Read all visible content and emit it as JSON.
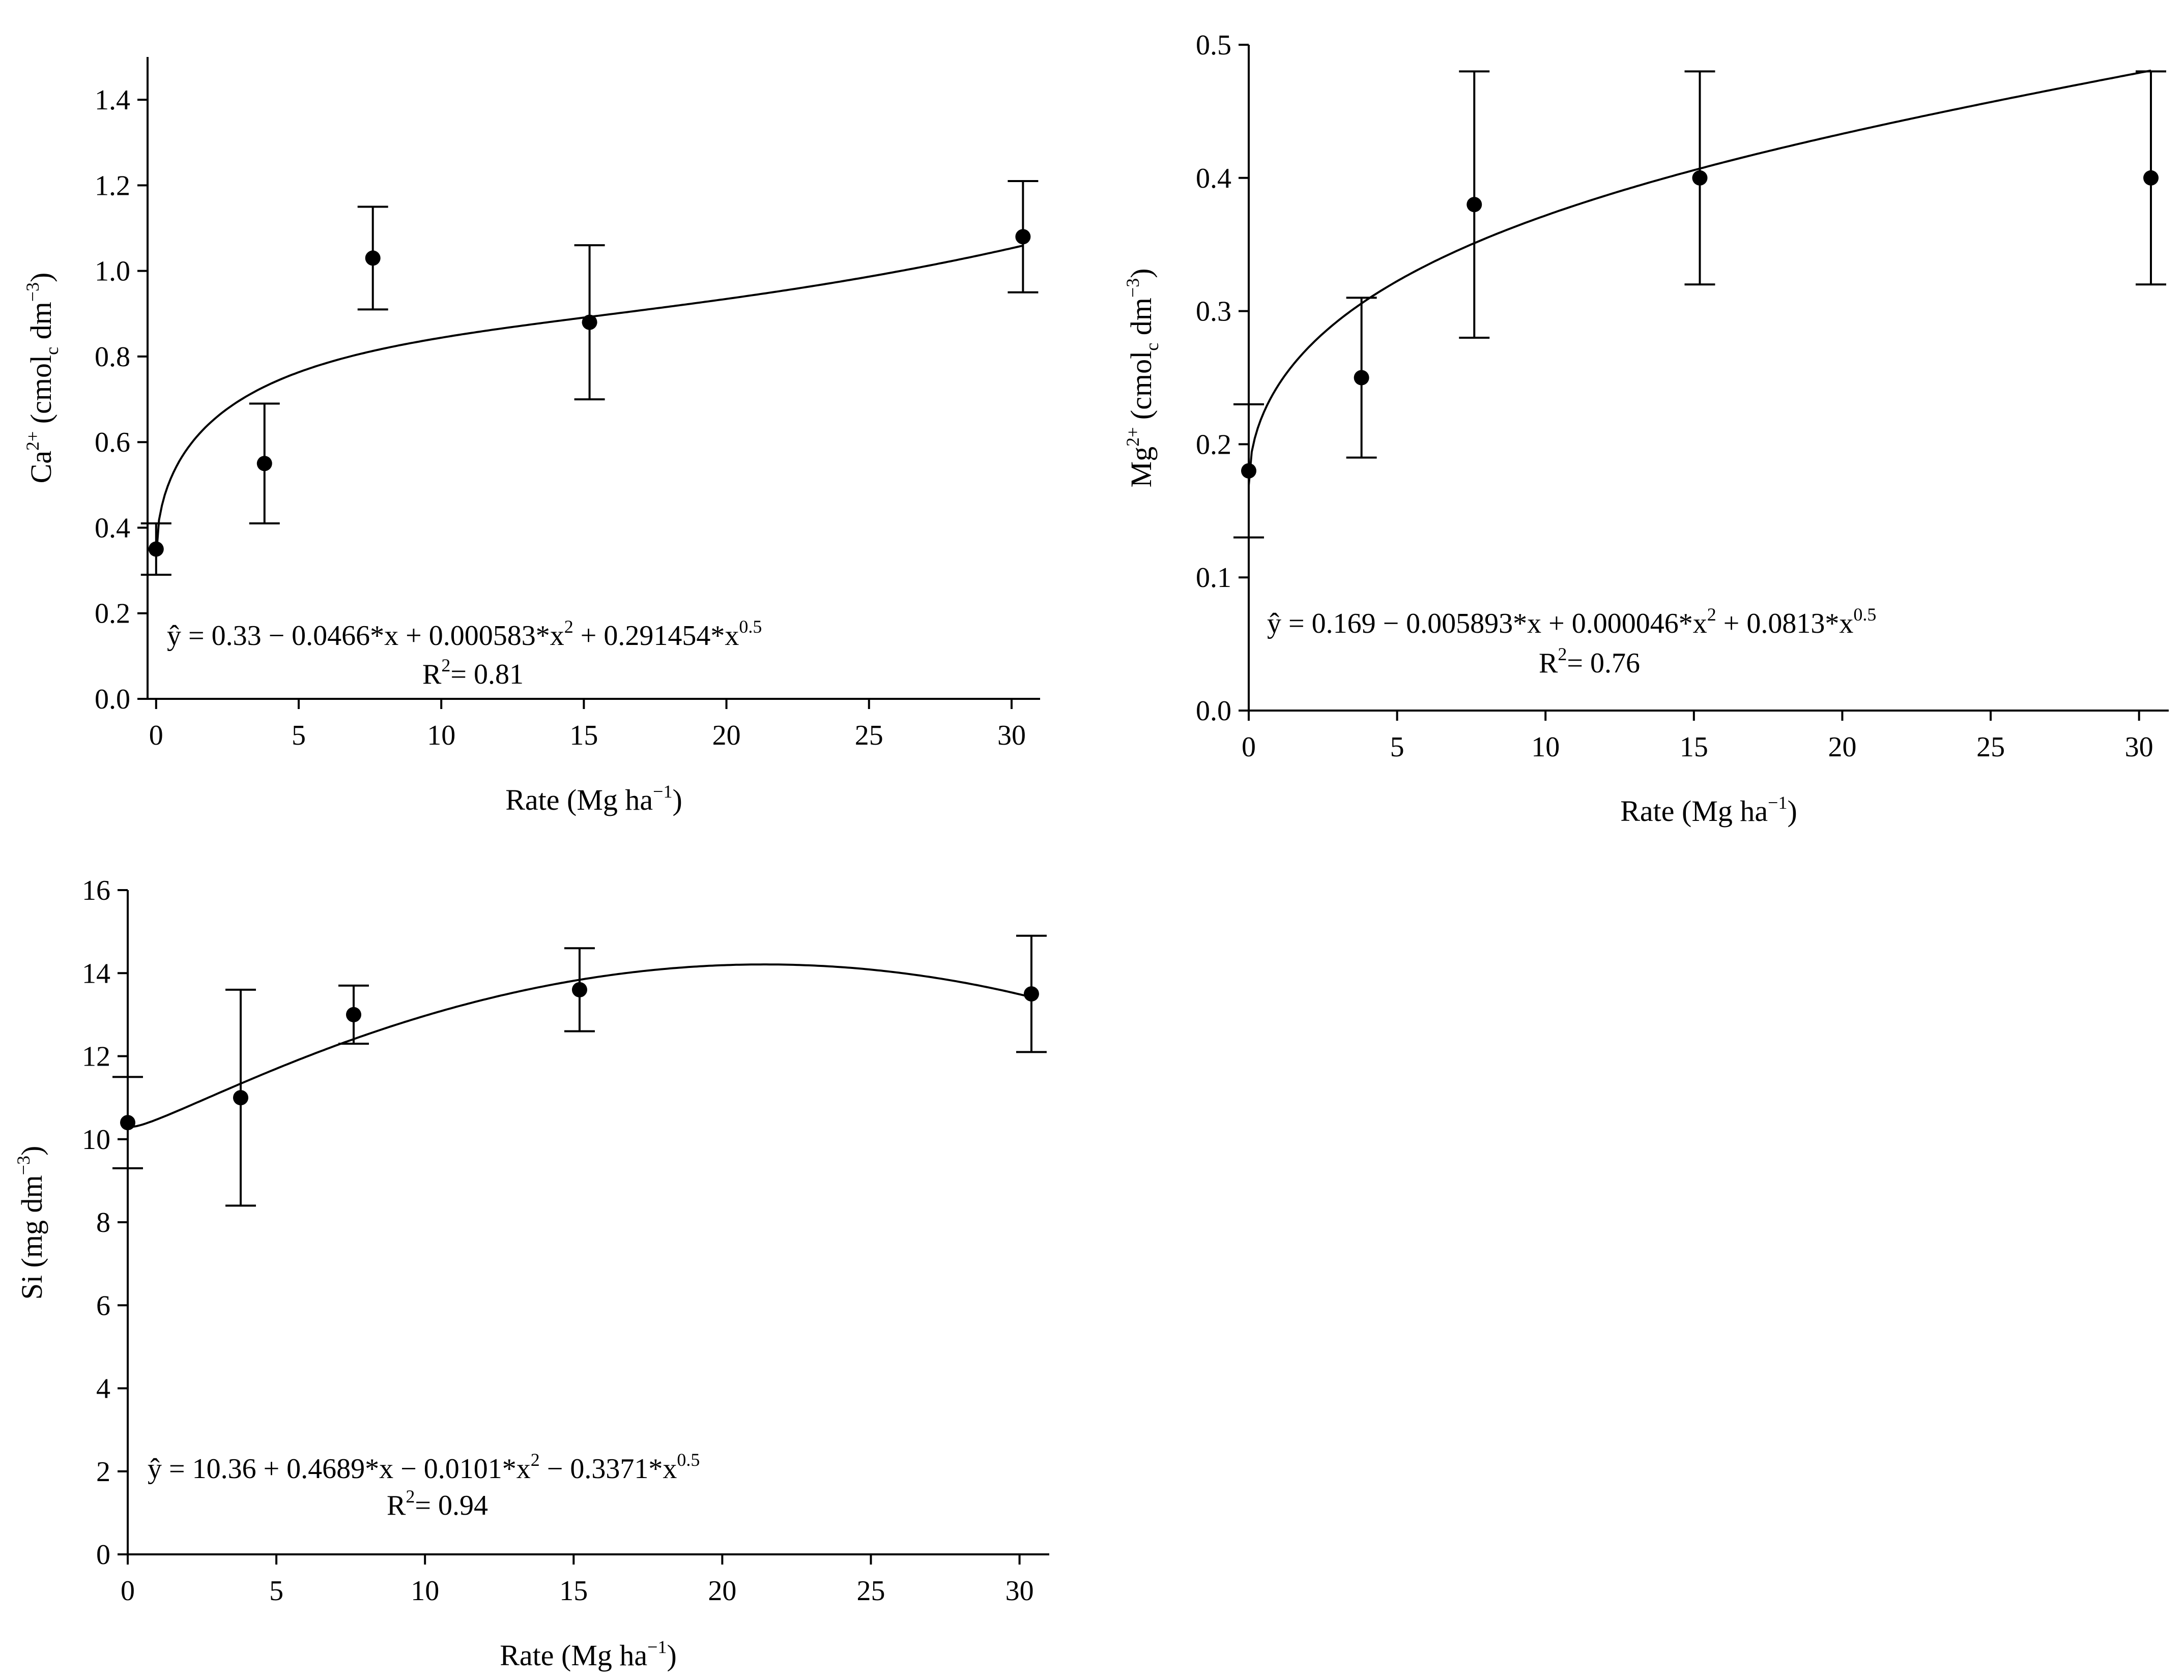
{
  "chart_data": [
    {
      "id": "ca",
      "type": "scatter",
      "title": "",
      "xlabel": {
        "pre": "Rate (Mg ha",
        "sup": "−1",
        "post": ")"
      },
      "ylabel": {
        "pre": "Ca",
        "sup": "2+",
        "mid": " (cmol",
        "sub": "c",
        "mid2": " dm",
        "sup2": "−3",
        "post": ")"
      },
      "xlim": [
        -0.3,
        31
      ],
      "ylim": [
        0,
        1.5
      ],
      "xticks": [
        0,
        5,
        10,
        15,
        20,
        25,
        30
      ],
      "yticks": [
        0.0,
        0.2,
        0.4,
        0.6,
        0.8,
        1.0,
        1.2,
        1.4
      ],
      "ytick_decimals": 1,
      "points": [
        {
          "x": 0,
          "y": 0.35,
          "lo": 0.29,
          "hi": 0.41
        },
        {
          "x": 3.8,
          "y": 0.55,
          "lo": 0.41,
          "hi": 0.69
        },
        {
          "x": 7.6,
          "y": 1.03,
          "lo": 0.91,
          "hi": 1.15
        },
        {
          "x": 15.2,
          "y": 0.88,
          "lo": 0.7,
          "hi": 1.06
        },
        {
          "x": 30.4,
          "y": 1.08,
          "lo": 0.95,
          "hi": 1.21
        }
      ],
      "fit": {
        "intercept": 0.33,
        "x": -0.0466,
        "x2": 0.000583,
        "x05": 0.291454,
        "xmax": 30.4
      },
      "equation": {
        "lhs": "ŷ",
        "text": " = 0.33 − 0.0466*x + 0.000583*x",
        "sup1": "2",
        "text2": " + 0.291454*x",
        "sup2": "0.5"
      },
      "r2": {
        "label": "R",
        "sup": "2",
        "value": "= 0.81"
      }
    },
    {
      "id": "mg",
      "type": "scatter",
      "title": "",
      "xlabel": {
        "pre": "Rate (Mg ha",
        "sup": "−1",
        "post": ")"
      },
      "ylabel": {
        "pre": "Mg",
        "sup": "2+",
        "mid": " (cmol",
        "sub": "c",
        "mid2": " dm",
        "sup2": "−3",
        "post": ")"
      },
      "xlim": [
        0,
        31
      ],
      "ylim": [
        0,
        0.5
      ],
      "xticks": [
        0,
        5,
        10,
        15,
        20,
        25,
        30
      ],
      "yticks": [
        0.0,
        0.1,
        0.2,
        0.3,
        0.4,
        0.5
      ],
      "ytick_decimals": 1,
      "points": [
        {
          "x": 0,
          "y": 0.18,
          "lo": 0.13,
          "hi": 0.23
        },
        {
          "x": 3.8,
          "y": 0.25,
          "lo": 0.19,
          "hi": 0.31
        },
        {
          "x": 7.6,
          "y": 0.38,
          "lo": 0.28,
          "hi": 0.48
        },
        {
          "x": 15.2,
          "y": 0.4,
          "lo": 0.32,
          "hi": 0.48
        },
        {
          "x": 30.4,
          "y": 0.4,
          "lo": 0.32,
          "hi": 0.48
        }
      ],
      "fit": {
        "intercept": 0.169,
        "x": -0.005893,
        "x2": 4.6e-05,
        "x05": 0.0813,
        "xmax": 30.4
      },
      "equation": {
        "lhs": "ŷ",
        "text": " = 0.169 − 0.005893*x + 0.000046*x",
        "sup1": "2",
        "text2": " + 0.0813*x",
        "sup2": "0.5"
      },
      "r2": {
        "label": "R",
        "sup": "2",
        "value": "= 0.76"
      }
    },
    {
      "id": "si",
      "type": "scatter",
      "title": "",
      "xlabel": {
        "pre": "Rate (Mg ha",
        "sup": "−1",
        "post": ")"
      },
      "ylabel": {
        "pre": "Si (mg dm",
        "sup": "−3",
        "post": ")"
      },
      "xlim": [
        0,
        31
      ],
      "ylim": [
        0,
        16
      ],
      "xticks": [
        0,
        5,
        10,
        15,
        20,
        25,
        30
      ],
      "yticks": [
        0,
        2,
        4,
        6,
        8,
        10,
        12,
        14,
        16
      ],
      "ytick_decimals": 0,
      "points": [
        {
          "x": 0,
          "y": 10.4,
          "lo": 9.3,
          "hi": 11.5
        },
        {
          "x": 3.8,
          "y": 11.0,
          "lo": 8.4,
          "hi": 13.6
        },
        {
          "x": 7.6,
          "y": 13.0,
          "lo": 12.3,
          "hi": 13.7
        },
        {
          "x": 15.2,
          "y": 13.6,
          "lo": 12.6,
          "hi": 14.6
        },
        {
          "x": 30.4,
          "y": 13.5,
          "lo": 12.1,
          "hi": 14.9
        }
      ],
      "fit": {
        "intercept": 10.36,
        "x": 0.4689,
        "x2": -0.0101,
        "x05": -0.3371,
        "xmax": 30.4
      },
      "equation": {
        "lhs": "ŷ",
        "text": " = 10.36 + 0.4689*x − 0.0101*x",
        "sup1": "2",
        "text2": " − 0.3371*x",
        "sup2": "0.5"
      },
      "r2": {
        "label": "R",
        "sup": "2",
        "value": "= 0.94"
      }
    }
  ]
}
